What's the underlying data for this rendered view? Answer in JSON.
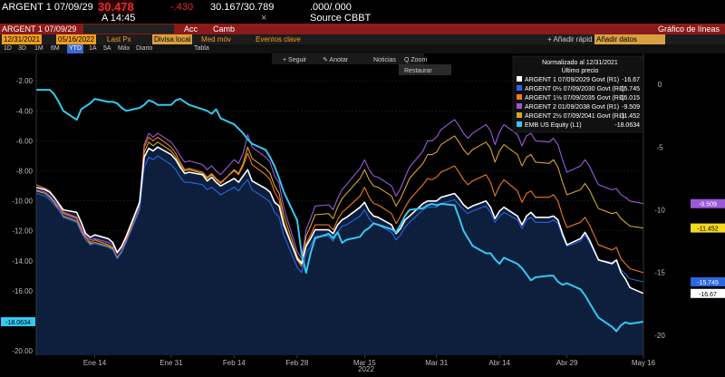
{
  "header": {
    "security": "ARGENT 1 07/09/29",
    "price": "30.478",
    "change": "-.430",
    "bid_ask": "30.167/30.789",
    "size": ".000/.000",
    "time_label": "A 14:45",
    "x_mark": "×",
    "source": "Source CBBT"
  },
  "toolbar": {
    "security_field": "ARGENT 1 07/09/29",
    "acc_button": "Acc",
    "camb_button": "Camb",
    "chart_title": "Gráfico de líneas"
  },
  "controls": {
    "start_date": "12/31/2021",
    "end_date": "05/16/2022",
    "last_px": "Last Px",
    "currency": "Divisa local",
    "med_mov": "Med móv",
    "events": "Eventos clave",
    "add_rapid": "+ Añadir rápid",
    "add_field": "Añadir datos"
  },
  "periods": [
    "1D",
    "3D",
    "1M",
    "6M",
    "YTD",
    "1A",
    "5A",
    "Máx",
    "Diario"
  ],
  "table_label": "Tabla",
  "chart_tools": {
    "follow": "+ Seguir",
    "annotate": "✎ Anotar",
    "news": "Noticias",
    "zoom": "Q Zoom",
    "restore": "Restaurar"
  },
  "colors": {
    "background": "#000000",
    "red_bar": "#8b1a1a",
    "fill": "#0d1f3c"
  },
  "chart_data": {
    "type": "line",
    "x_dates": [
      "2022-01-01",
      "2022-01-03",
      "2022-01-04",
      "2022-01-05",
      "2022-01-06",
      "2022-01-07",
      "2022-01-10",
      "2022-01-11",
      "2022-01-12",
      "2022-01-13",
      "2022-01-14",
      "2022-01-17",
      "2022-01-18",
      "2022-01-19",
      "2022-01-20",
      "2022-01-21",
      "2022-01-24",
      "2022-01-25",
      "2022-01-26",
      "2022-01-27",
      "2022-01-28",
      "2022-01-31",
      "2022-02-01",
      "2022-02-02",
      "2022-02-03",
      "2022-02-04",
      "2022-02-07",
      "2022-02-08",
      "2022-02-09",
      "2022-02-10",
      "2022-02-11",
      "2022-02-14",
      "2022-02-15",
      "2022-02-16",
      "2022-02-17",
      "2022-02-18",
      "2022-02-21",
      "2022-02-22",
      "2022-02-23",
      "2022-02-24",
      "2022-02-25",
      "2022-02-28",
      "2022-03-01",
      "2022-03-02",
      "2022-03-03",
      "2022-03-04",
      "2022-03-07",
      "2022-03-08",
      "2022-03-09",
      "2022-03-10",
      "2022-03-11",
      "2022-03-14",
      "2022-03-15",
      "2022-03-16",
      "2022-03-17",
      "2022-03-18",
      "2022-03-21",
      "2022-03-22",
      "2022-03-23",
      "2022-03-24",
      "2022-03-25",
      "2022-03-28",
      "2022-03-29",
      "2022-03-30",
      "2022-03-31",
      "2022-04-01",
      "2022-04-04",
      "2022-04-05",
      "2022-04-06",
      "2022-04-07",
      "2022-04-08",
      "2022-04-11",
      "2022-04-12",
      "2022-04-13",
      "2022-04-14",
      "2022-04-15",
      "2022-04-18",
      "2022-04-19",
      "2022-04-20",
      "2022-04-21",
      "2022-04-22",
      "2022-04-25",
      "2022-04-26",
      "2022-04-27",
      "2022-04-28",
      "2022-04-29",
      "2022-05-02",
      "2022-05-03",
      "2022-05-04",
      "2022-05-05",
      "2022-05-06",
      "2022-05-09",
      "2022-05-10",
      "2022-05-11",
      "2022-05-12",
      "2022-05-13",
      "2022-05-16"
    ],
    "x_ticks": [
      "Ene 14",
      "Ene 31",
      "Feb 14",
      "Feb 28",
      "Mar 15",
      "Mar 31",
      "Abr 14",
      "Abr 29",
      "May 16"
    ],
    "x_tick_dates": [
      "2022-01-14",
      "2022-01-31",
      "2022-02-14",
      "2022-02-28",
      "2022-03-15",
      "2022-03-31",
      "2022-04-14",
      "2022-04-29",
      "2022-05-16"
    ],
    "year_label": "2022",
    "y_left": {
      "ticks": [
        -2,
        -4,
        -6,
        -8,
        -10,
        -12,
        -14,
        -16,
        -18,
        -20
      ],
      "range": [
        -20.3,
        -0.9
      ]
    },
    "y_right": {
      "ticks": [
        0,
        -5,
        -10,
        -15,
        -20
      ],
      "range": [
        -21.6,
        1.6
      ]
    },
    "legend_title": "Normalizado al 12/31/2021",
    "legend_subtitle": "Último precio",
    "series": [
      {
        "name": "ARGENT 1 07/09/2029 Govt (R1)",
        "last": "-16.67",
        "axis": "right",
        "color": "#ffffff",
        "values": [
          -8.2,
          -8.4,
          -8.6,
          -9.0,
          -9.5,
          -10.0,
          -10.2,
          -11.0,
          -11.9,
          -12.2,
          -12.0,
          -12.3,
          -12.6,
          -13.4,
          -12.9,
          -12.1,
          -9.4,
          -5.8,
          -5.1,
          -5.3,
          -5.0,
          -5.6,
          -6.0,
          -6.6,
          -7.1,
          -7.0,
          -7.2,
          -7.7,
          -7.4,
          -7.8,
          -8.1,
          -7.5,
          -7.8,
          -7.3,
          -6.8,
          -7.7,
          -8.3,
          -8.6,
          -9.4,
          -9.7,
          -11.2,
          -13.9,
          -14.3,
          -12.9,
          -12.3,
          -11.6,
          -11.6,
          -11.9,
          -11.2,
          -10.8,
          -10.6,
          -9.8,
          -9.4,
          -10.1,
          -10.5,
          -10.6,
          -11.2,
          -11.9,
          -11.5,
          -10.8,
          -10.5,
          -9.5,
          -9.3,
          -9.3,
          -9.3,
          -9.0,
          -8.7,
          -9.1,
          -9.6,
          -9.9,
          -9.7,
          -9.3,
          -9.8,
          -10.7,
          -10.1,
          -9.8,
          -10.5,
          -11.2,
          -10.5,
          -10.2,
          -10.6,
          -10.6,
          -10.5,
          -10.8,
          -11.9,
          -12.8,
          -12.3,
          -11.8,
          -12.4,
          -13.2,
          -14.0,
          -14.3,
          -14.0,
          -15.0,
          -15.5,
          -16.2,
          -16.67
        ]
      },
      {
        "name": "ARGENT 0½ 07/09/2030 Govt (R1)",
        "last": "-15.745",
        "axis": "right",
        "color": "#2a66e0",
        "values": [
          -8.7,
          -8.9,
          -9.2,
          -9.6,
          -10.0,
          -10.6,
          -11.0,
          -11.8,
          -12.4,
          -12.8,
          -12.7,
          -13.0,
          -13.2,
          -13.9,
          -13.4,
          -12.6,
          -10.0,
          -6.6,
          -5.8,
          -6.0,
          -5.7,
          -6.4,
          -6.8,
          -7.4,
          -7.8,
          -7.8,
          -8.0,
          -8.4,
          -8.2,
          -8.5,
          -8.8,
          -8.2,
          -8.5,
          -8.0,
          -7.6,
          -8.4,
          -9.1,
          -9.4,
          -10.2,
          -10.6,
          -12.0,
          -14.6,
          -15.0,
          -13.5,
          -12.9,
          -12.1,
          -12.1,
          -12.5,
          -11.8,
          -11.3,
          -11.2,
          -10.5,
          -10.0,
          -10.7,
          -11.1,
          -11.2,
          -11.8,
          -12.4,
          -12.0,
          -11.4,
          -11.0,
          -10.0,
          -9.8,
          -9.8,
          -9.8,
          -9.5,
          -9.2,
          -9.6,
          -10.0,
          -10.3,
          -10.1,
          -9.7,
          -10.2,
          -11.0,
          -10.5,
          -10.2,
          -10.8,
          -11.5,
          -10.8,
          -10.6,
          -11.0,
          -11.0,
          -10.8,
          -11.1,
          -12.1,
          -12.9,
          -12.5,
          -12.0,
          -12.6,
          -13.3,
          -14.0,
          -14.2,
          -14.0,
          -14.8,
          -15.1,
          -15.5,
          -15.745
        ]
      },
      {
        "name": "ARGENT 1⅛ 07/09/2035 Govt (R1)",
        "last": "-15.015",
        "axis": "right",
        "color": "#f07a1a",
        "values": [
          -8.0,
          -8.3,
          -8.5,
          -9.0,
          -9.6,
          -10.2,
          -10.6,
          -11.6,
          -12.2,
          -12.6,
          -12.4,
          -12.8,
          -13.0,
          -13.9,
          -13.3,
          -12.4,
          -9.3,
          -5.0,
          -4.2,
          -4.5,
          -4.2,
          -5.0,
          -5.5,
          -6.2,
          -6.8,
          -6.7,
          -7.0,
          -7.4,
          -7.1,
          -7.5,
          -7.8,
          -6.9,
          -7.2,
          -6.5,
          -5.5,
          -6.4,
          -7.2,
          -7.6,
          -8.6,
          -9.2,
          -10.9,
          -14.0,
          -14.5,
          -12.7,
          -12.0,
          -11.2,
          -11.2,
          -11.6,
          -10.8,
          -10.2,
          -9.9,
          -8.9,
          -8.2,
          -9.0,
          -9.5,
          -9.6,
          -10.3,
          -11.1,
          -10.5,
          -9.8,
          -9.2,
          -8.0,
          -7.5,
          -7.6,
          -7.4,
          -7.0,
          -6.5,
          -7.0,
          -7.6,
          -8.0,
          -7.7,
          -7.2,
          -7.8,
          -8.9,
          -8.1,
          -7.6,
          -8.5,
          -9.4,
          -8.7,
          -8.5,
          -9.0,
          -9.0,
          -8.8,
          -9.3,
          -10.5,
          -11.4,
          -11.0,
          -10.6,
          -11.2,
          -12.0,
          -12.8,
          -13.2,
          -13.0,
          -13.9,
          -14.3,
          -14.7,
          -15.015
        ]
      },
      {
        "name": "ARGENT 2 01/09/2038 Govt (R1)",
        "last": "-9.509",
        "axis": "right",
        "color": "#9a5ad8",
        "values": [
          -8.4,
          -8.6,
          -8.9,
          -9.3,
          -9.8,
          -10.3,
          -10.7,
          -11.4,
          -12.1,
          -12.4,
          -12.3,
          -12.6,
          -12.8,
          -13.5,
          -13.0,
          -12.2,
          -9.6,
          -4.8,
          -3.9,
          -4.2,
          -3.9,
          -4.6,
          -5.1,
          -5.7,
          -6.2,
          -6.1,
          -6.4,
          -6.8,
          -6.5,
          -6.9,
          -7.2,
          -6.0,
          -6.3,
          -5.5,
          -4.0,
          -5.0,
          -5.8,
          -6.2,
          -7.3,
          -7.9,
          -9.8,
          -13.3,
          -13.9,
          -11.6,
          -10.7,
          -9.7,
          -9.6,
          -10.0,
          -9.1,
          -8.4,
          -8.0,
          -6.7,
          -6.0,
          -6.8,
          -7.3,
          -7.4,
          -8.1,
          -8.9,
          -8.3,
          -7.4,
          -6.6,
          -5.3,
          -4.5,
          -4.5,
          -4.2,
          -3.6,
          -2.8,
          -3.3,
          -3.9,
          -4.3,
          -3.9,
          -3.2,
          -3.7,
          -4.8,
          -3.8,
          -3.2,
          -4.0,
          -4.9,
          -4.1,
          -3.9,
          -4.5,
          -4.6,
          -4.3,
          -4.8,
          -6.0,
          -7.0,
          -6.5,
          -6.0,
          -6.5,
          -7.3,
          -8.0,
          -8.4,
          -8.3,
          -8.8,
          -9.0,
          -9.3,
          -9.509
        ]
      },
      {
        "name": "ARGENT 2½ 07/09/2041 Govt (R1)",
        "last": "-11.452",
        "axis": "right",
        "color": "#d4a62a",
        "values": [
          -8.5,
          -8.7,
          -9.0,
          -9.4,
          -10.0,
          -10.5,
          -10.9,
          -11.7,
          -12.4,
          -12.7,
          -12.6,
          -12.9,
          -13.1,
          -13.8,
          -13.3,
          -12.5,
          -9.9,
          -5.4,
          -4.6,
          -4.9,
          -4.6,
          -5.3,
          -5.8,
          -6.4,
          -6.9,
          -6.8,
          -7.1,
          -7.5,
          -7.2,
          -7.6,
          -7.9,
          -6.8,
          -7.1,
          -6.3,
          -5.0,
          -5.9,
          -6.7,
          -7.1,
          -8.1,
          -8.7,
          -10.4,
          -13.7,
          -14.2,
          -12.1,
          -11.3,
          -10.4,
          -10.3,
          -10.7,
          -9.8,
          -9.1,
          -8.7,
          -7.5,
          -6.8,
          -7.6,
          -8.1,
          -8.2,
          -8.9,
          -9.7,
          -9.1,
          -8.3,
          -7.5,
          -6.3,
          -5.6,
          -5.6,
          -5.4,
          -4.8,
          -4.1,
          -4.6,
          -5.2,
          -5.6,
          -5.2,
          -4.6,
          -5.1,
          -6.2,
          -5.3,
          -4.8,
          -5.6,
          -6.5,
          -5.8,
          -5.6,
          -6.2,
          -6.3,
          -6.0,
          -6.6,
          -7.8,
          -8.8,
          -8.4,
          -7.9,
          -8.4,
          -9.2,
          -9.9,
          -10.3,
          -10.2,
          -10.7,
          -11.0,
          -11.3,
          -11.452
        ]
      },
      {
        "name": "EMB US Equity (L1)",
        "last": "-18.0634",
        "axis": "left",
        "color": "#35c8f0",
        "values": [
          -2.6,
          -2.6,
          -2.6,
          -2.9,
          -3.4,
          -4.0,
          -4.6,
          -3.9,
          -3.7,
          -3.5,
          -3.2,
          -3.4,
          -3.4,
          -3.5,
          -3.8,
          -4.0,
          -3.8,
          -3.6,
          -3.3,
          -3.4,
          -3.6,
          -3.6,
          -3.3,
          -3.2,
          -3.4,
          -3.6,
          -3.9,
          -4.0,
          -4.2,
          -3.9,
          -4.5,
          -4.9,
          -5.2,
          -5.5,
          -5.9,
          -6.2,
          -6.6,
          -7.1,
          -7.7,
          -8.5,
          -9.4,
          -11.3,
          -13.5,
          -14.8,
          -13.5,
          -12.5,
          -12.2,
          -12.5,
          -12.1,
          -12.8,
          -12.6,
          -12.4,
          -12.0,
          -11.8,
          -11.5,
          -11.6,
          -11.9,
          -12.1,
          -11.6,
          -11.0,
          -10.6,
          -10.5,
          -10.3,
          -10.2,
          -10.3,
          -10.2,
          -10.3,
          -11.1,
          -12.0,
          -12.5,
          -13.0,
          -13.5,
          -13.5,
          -13.9,
          -14.2,
          -13.8,
          -14.2,
          -14.5,
          -14.9,
          -15.3,
          -15.1,
          -15.0,
          -15.0,
          -15.4,
          -15.6,
          -15.5,
          -15.9,
          -16.3,
          -16.8,
          -17.3,
          -17.8,
          -18.4,
          -18.7,
          -18.3,
          -18.1,
          -18.2,
          -18.0634
        ]
      }
    ]
  }
}
